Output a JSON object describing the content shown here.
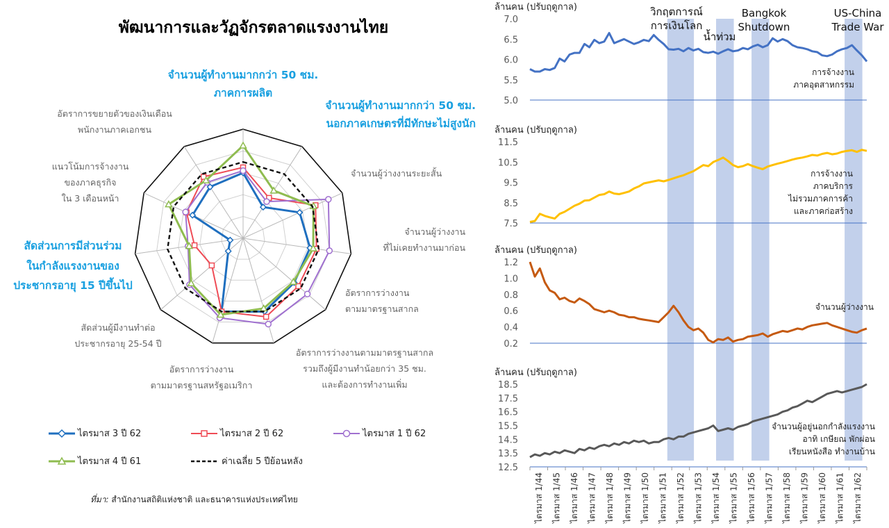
{
  "title": "พัฒนาการและวัฏจักรตลาดแรงงานไทย",
  "source_prefix": "ที่มา:",
  "source_text": " สำนักงานสถิติแห่งชาติ และธนาคารแห่งประเทศไทย",
  "chart_data": [
    {
      "type": "radar",
      "axes": [
        "จำนวนผู้ทำงานมากกว่า 50 ชม. ภาคการผลิต",
        "จำนวนผู้ทำงานมากกว่า 50 ชม. นอกภาคเกษตรที่มีทักษะไม่สูงนัก",
        "จำนวนผู้ว่างงานระยะสั้น",
        "จำนวนผู้ว่างงานที่ไม่เคยทำงานมาก่อน",
        "อัตราการว่างงานตามมาตรฐานสากล",
        "อัตราการว่างงานตามมาตรฐานสากล รวมถึงผู้มีงานทำน้อยกว่า 35 ชม. และต้องการทำงานเพิ่ม",
        "อัตราการว่างงานตามมาตรฐานสหรัฐอเมริกา",
        "สัดส่วนผู้มีงานทำต่อประชากรอายุ 25-54 ปี",
        "สัดส่วนการมีส่วนร่วมในกำลังแรงงานของประชากรอายุ 15 ปีขึ้นไป",
        "แนวโน้มการจ้างงานของภาคธุรกิจ ใน 3 เดือนหน้า",
        "อัตราการขยายตัวของเงินเดือนพนักงานภาคเอกชน"
      ],
      "series": [
        {
          "name": "ไตรมาส 3 ปี 62",
          "color": "#1f6fbf",
          "marker": "diamond",
          "values": [
            0.6,
            0.34,
            0.57,
            0.62,
            0.62,
            0.7,
            0.7,
            0.18,
            0.12,
            0.51,
            0.56
          ]
        },
        {
          "name": "ไตรมาส 2 ปี 62",
          "color": "#ef4b55",
          "marker": "square",
          "values": [
            0.65,
            0.44,
            0.73,
            0.68,
            0.67,
            0.75,
            0.7,
            0.38,
            0.45,
            0.57,
            0.67
          ]
        },
        {
          "name": "ไตรมาส 1 ปี 62",
          "color": "#a070d0",
          "marker": "circle",
          "values": [
            0.62,
            0.4,
            0.86,
            0.8,
            0.78,
            0.82,
            0.76,
            0.65,
            0.51,
            0.58,
            0.61
          ]
        },
        {
          "name": "ไตรมาส 4 ปี 61",
          "color": "#8fbc50",
          "marker": "triangle",
          "values": [
            0.85,
            0.52,
            0.71,
            0.65,
            0.61,
            0.67,
            0.73,
            0.63,
            0.5,
            0.75,
            0.63
          ]
        },
        {
          "name": "ค่าเฉลี่ย 5 ปีย้อนหลัง",
          "color": "#111111",
          "marker": "none",
          "dashed": true,
          "values": [
            0.7,
            0.7,
            0.7,
            0.7,
            0.7,
            0.7,
            0.7,
            0.7,
            0.7,
            0.7,
            0.7
          ]
        }
      ]
    },
    {
      "type": "line",
      "x_tick_labels": [
        "ไตรมาส 1/44",
        "ไตรมาส 1/45",
        "ไตรมาส 1/46",
        "ไตรมาส 1/47",
        "ไตรมาส 1/48",
        "ไตรมาส 1/49",
        "ไตรมาส 1/50",
        "ไตรมาส 1/51",
        "ไตรมาส 1/52",
        "ไตรมาส 1/53",
        "ไตรมาส 1/54",
        "ไตรมาส 1/55",
        "ไตรมาส 1/56",
        "ไตรมาส 1/57",
        "ไตรมาส 1/58",
        "ไตรมาส 1/59",
        "ไตรมาส 1/60",
        "ไตรมาส 1/61",
        "ไตรมาส 1/62"
      ],
      "shaded_periods": [
        {
          "label": "วิกฤตการณ์การเงินโลก",
          "start": 7.75,
          "end": 9.25
        },
        {
          "label": "น้ำท่วม",
          "start": 10.5,
          "end": 11.5
        },
        {
          "label": "Bangkok Shutdown",
          "start": 12.5,
          "end": 13.5
        },
        {
          "label": "US-China Trade War",
          "start": 17.75,
          "end": 18.75
        }
      ],
      "panels": [
        {
          "ylabel": "ล้านคน (ปรับฤดูกาล)",
          "series_label": "การจ้างงาน ภาคอุตสาหกรรม",
          "color": "#4472c4",
          "ylim": [
            5.0,
            7.0
          ],
          "yticks": [
            "7.0",
            "6.5",
            "6.0",
            "5.5",
            "5.0"
          ],
          "values": [
            5.76,
            5.7,
            5.7,
            5.76,
            5.74,
            5.79,
            6.02,
            5.95,
            6.12,
            6.16,
            6.16,
            6.38,
            6.3,
            6.48,
            6.4,
            6.44,
            6.65,
            6.4,
            6.45,
            6.5,
            6.44,
            6.38,
            6.42,
            6.48,
            6.45,
            6.6,
            6.48,
            6.38,
            6.25,
            6.24,
            6.26,
            6.2,
            6.28,
            6.22,
            6.26,
            6.18,
            6.16,
            6.19,
            6.14,
            6.2,
            6.25,
            6.2,
            6.22,
            6.28,
            6.25,
            6.32,
            6.36,
            6.3,
            6.35,
            6.52,
            6.44,
            6.5,
            6.45,
            6.35,
            6.3,
            6.28,
            6.25,
            6.2,
            6.18,
            6.1,
            6.08,
            6.12,
            6.2,
            6.25,
            6.28,
            6.35,
            6.22,
            6.1,
            5.95
          ]
        },
        {
          "ylabel": "ล้านคน (ปรับฤดูกาล)",
          "series_label": "การจ้างงาน ภาคบริการ ไม่รวมภาคการค้า และภาคก่อสร้าง",
          "color": "#ffc000",
          "ylim": [
            7.5,
            11.5
          ],
          "yticks": [
            "11.5",
            "10.5",
            "9.5",
            "8.5",
            "7.5"
          ],
          "values": [
            7.55,
            7.6,
            7.95,
            7.85,
            7.78,
            7.72,
            7.95,
            8.05,
            8.2,
            8.35,
            8.45,
            8.6,
            8.62,
            8.75,
            8.88,
            8.92,
            9.05,
            8.95,
            8.92,
            8.98,
            9.05,
            9.2,
            9.3,
            9.45,
            9.5,
            9.55,
            9.6,
            9.55,
            9.62,
            9.7,
            9.78,
            9.85,
            9.95,
            10.05,
            10.2,
            10.35,
            10.3,
            10.5,
            10.6,
            10.72,
            10.55,
            10.35,
            10.25,
            10.3,
            10.4,
            10.3,
            10.22,
            10.15,
            10.28,
            10.35,
            10.42,
            10.48,
            10.55,
            10.62,
            10.68,
            10.72,
            10.78,
            10.85,
            10.82,
            10.9,
            10.95,
            10.88,
            10.92,
            11.0,
            11.05,
            11.08,
            11.0,
            11.1,
            11.05
          ]
        },
        {
          "ylabel": "ล้านคน (ปรับฤดูกาล)",
          "series_label": "จำนวนผู้ว่างงาน",
          "color": "#c55a11",
          "ylim": [
            0.2,
            1.2
          ],
          "yticks": [
            "1.2",
            "1.0",
            "0.8",
            "0.6",
            "0.4",
            "0.2"
          ],
          "values": [
            1.2,
            1.02,
            1.12,
            0.95,
            0.85,
            0.82,
            0.74,
            0.76,
            0.72,
            0.7,
            0.75,
            0.72,
            0.68,
            0.62,
            0.6,
            0.58,
            0.6,
            0.58,
            0.55,
            0.54,
            0.52,
            0.52,
            0.5,
            0.49,
            0.48,
            0.47,
            0.46,
            0.52,
            0.58,
            0.66,
            0.58,
            0.48,
            0.4,
            0.36,
            0.38,
            0.33,
            0.24,
            0.21,
            0.25,
            0.24,
            0.27,
            0.22,
            0.24,
            0.25,
            0.28,
            0.29,
            0.3,
            0.32,
            0.28,
            0.31,
            0.33,
            0.35,
            0.34,
            0.36,
            0.38,
            0.37,
            0.4,
            0.42,
            0.43,
            0.44,
            0.45,
            0.42,
            0.4,
            0.38,
            0.36,
            0.34,
            0.33,
            0.36,
            0.38
          ]
        },
        {
          "ylabel": "ล้านคน (ปรับฤดูกาล)",
          "series_label": "จำนวนผู้อยู่นอกกำลังแรงงาน อาทิ เกษียณ พักผ่อน เรียนหนังสือ ทำงานบ้าน",
          "color": "#595959",
          "ylim": [
            12.5,
            18.5
          ],
          "yticks": [
            "18.5",
            "17.5",
            "16.5",
            "15.5",
            "14.5",
            "13.5",
            "12.5"
          ],
          "values": [
            13.2,
            13.4,
            13.3,
            13.5,
            13.4,
            13.6,
            13.5,
            13.7,
            13.6,
            13.5,
            13.8,
            13.7,
            13.9,
            13.8,
            14.0,
            14.1,
            14.0,
            14.2,
            14.1,
            14.3,
            14.2,
            14.4,
            14.3,
            14.4,
            14.2,
            14.3,
            14.3,
            14.5,
            14.6,
            14.5,
            14.7,
            14.7,
            14.9,
            15.0,
            15.1,
            15.2,
            15.3,
            15.5,
            15.1,
            15.2,
            15.3,
            15.2,
            15.4,
            15.5,
            15.6,
            15.8,
            15.9,
            16.0,
            16.1,
            16.2,
            16.3,
            16.5,
            16.6,
            16.8,
            16.9,
            17.1,
            17.3,
            17.2,
            17.4,
            17.6,
            17.8,
            17.9,
            18.0,
            17.9,
            18.0,
            18.1,
            18.2,
            18.3,
            18.5
          ]
        }
      ]
    }
  ],
  "radar_labels": {
    "l0a": "จำนวนผู้ทำงานมากกว่า 50 ชม.",
    "l0b": "ภาคการผลิต",
    "l1a": "จำนวนผู้ทำงานมากกว่า 50 ชม.",
    "l1b": "นอกภาคเกษตรที่มีทักษะไม่สูงนัก",
    "l2": "จำนวนผู้ว่างงานระยะสั้น",
    "l3a": "จำนวนผู้ว่างงาน",
    "l3b": "ที่ไม่เคยทำงานมาก่อน",
    "l4a": "อัตราการว่างงาน",
    "l4b": "ตามมาตรฐานสากล",
    "l5a": "อัตราการว่างงานตามมาตรฐานสากล",
    "l5b": "รวมถึงผู้มีงานทำน้อยกว่า 35 ชม.",
    "l5c": "และต้องการทำงานเพิ่ม",
    "l6a": "อัตราการว่างงาน",
    "l6b": "ตามมาตรฐานสหรัฐอเมริกา",
    "l7a": "สัดส่วนผู้มีงานทำต่อ",
    "l7b": "ประชากรอายุ 25-54 ปี",
    "l8a": "สัดส่วนการมีส่วนร่วม",
    "l8b": "ในกำลังแรงงานของ",
    "l8c": "ประชากรอายุ 15 ปีขึ้นไป",
    "l9a": "แนวโน้มการจ้างงาน",
    "l9b": "ของภาคธุรกิจ",
    "l9c": "ใน 3 เดือนหน้า",
    "l10a": "อัตราการขยายตัวของเงินเดือน",
    "l10b": "พนักงานภาคเอกชน"
  },
  "panel_notes": {
    "p1a": "การจ้างงาน",
    "p1b": "ภาคอุตสาหกรรม",
    "p2a": "การจ้างงาน",
    "p2b": "ภาคบริการ",
    "p2c": "ไม่รวมภาคการค้า",
    "p2d": "และภาคก่อสร้าง",
    "p3": "จำนวนผู้ว่างงาน",
    "p4a": "จำนวนผู้อยู่นอกกำลังแรงงาน",
    "p4b": "อาทิ เกษียณ พักผ่อน",
    "p4c": "เรียนหนังสือ ทำงานบ้าน"
  },
  "shade_labels": {
    "s1a": "วิกฤตการณ์",
    "s1b": "การเงินโลก",
    "s2": "น้ำท่วม",
    "s3a": "Bangkok",
    "s3b": "Shutdown",
    "s4a": "US-China",
    "s4b": "Trade War"
  }
}
